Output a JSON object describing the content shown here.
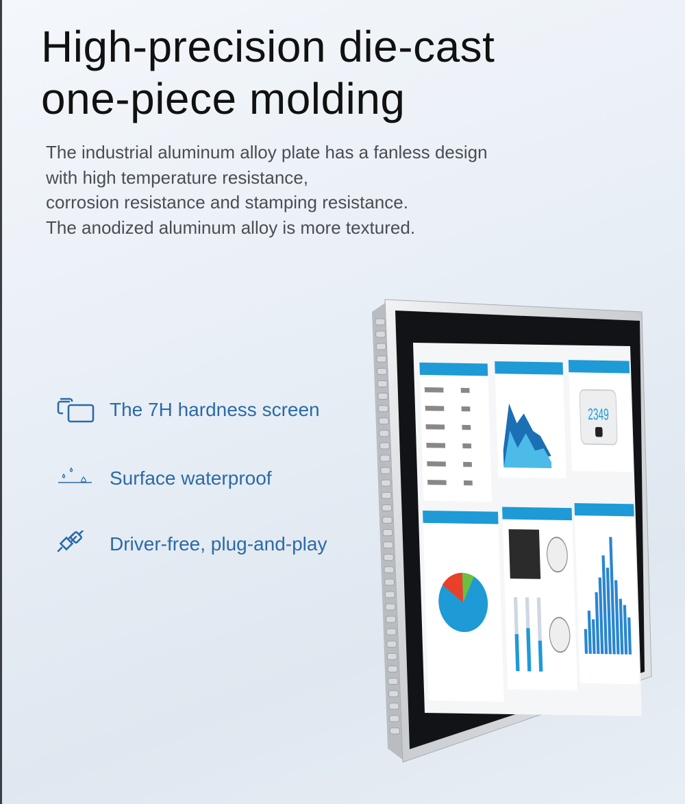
{
  "heading": {
    "line1": "High-precision die-cast",
    "line2": "one-piece molding"
  },
  "description": [
    "The industrial aluminum alloy plate has a fanless design",
    "with high temperature resistance,",
    "corrosion resistance and stamping resistance.",
    "The anodized aluminum alloy is more textured."
  ],
  "features": [
    {
      "icon": "dual-screen-icon",
      "label": "The 7H hardness screen"
    },
    {
      "icon": "water-drops-icon",
      "label": "Surface waterproof"
    },
    {
      "icon": "plug-icon",
      "label": "Driver-free, plug-and-play"
    }
  ],
  "monitor_screen": {
    "counter_value": "2349"
  },
  "colors": {
    "feature_text": "#2b6aa6",
    "accent_blue": "#1e9ad6",
    "title": "#111111"
  }
}
